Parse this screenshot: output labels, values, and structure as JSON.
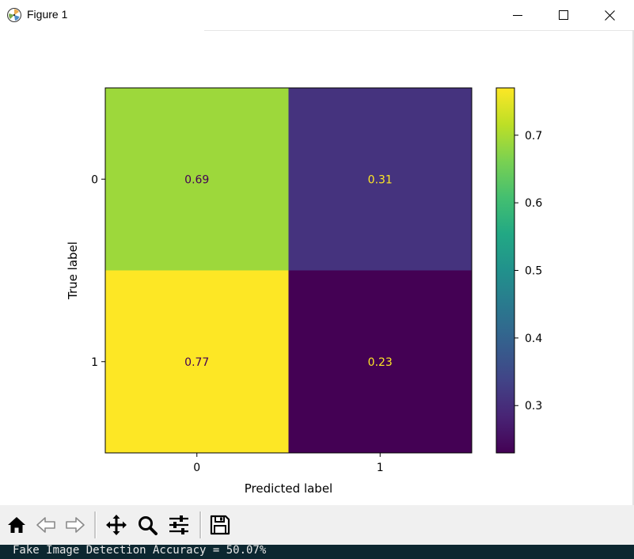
{
  "window": {
    "title": "Figure 1",
    "icon": "matplotlib-icon",
    "controls": [
      "minimize-icon",
      "maximize-icon",
      "close-icon"
    ]
  },
  "chart_data": {
    "type": "heatmap",
    "title": "",
    "xlabel": "Predicted label",
    "ylabel": "True label",
    "x_categories": [
      "0",
      "1"
    ],
    "y_categories": [
      "0",
      "1"
    ],
    "values": [
      [
        0.69,
        0.31
      ],
      [
        0.77,
        0.23
      ]
    ],
    "value_labels": [
      [
        "0.69",
        "0.31"
      ],
      [
        "0.77",
        "0.23"
      ]
    ],
    "colormap": "viridis",
    "colorbar": {
      "range": [
        0.23,
        0.77
      ],
      "ticks": [
        0.3,
        0.4,
        0.5,
        0.6,
        0.7
      ],
      "tick_labels": [
        "0.3",
        "0.4",
        "0.5",
        "0.6",
        "0.7"
      ]
    },
    "text_colors": {
      "on_light": "#440154",
      "on_dark": "#fde725"
    }
  },
  "toolbar": {
    "buttons": [
      "home-icon",
      "back-icon",
      "forward-icon",
      "pan-icon",
      "zoom-icon",
      "configure-subplots-icon",
      "save-icon"
    ]
  },
  "console": {
    "text": "Fake Image Detection Accuracy = 50.07%"
  }
}
